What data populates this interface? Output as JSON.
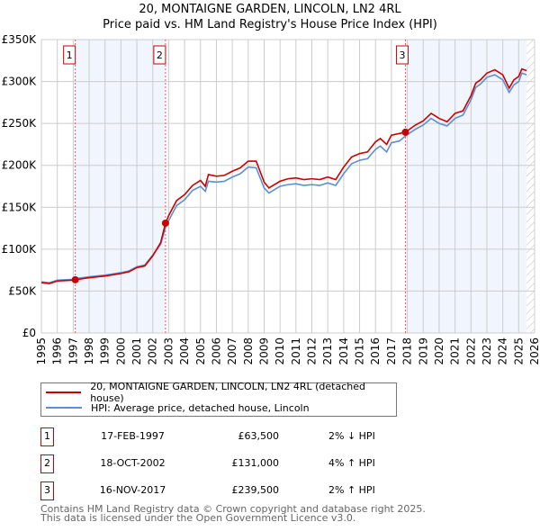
{
  "chart_data": {
    "type": "line",
    "title": "20, MONTAIGNE GARDEN, LINCOLN, LN2 4RL",
    "subtitle": "Price paid vs. HM Land Registry's House Price Index (HPI)",
    "xlim": [
      1995,
      2026
    ],
    "ylim": [
      0,
      350000
    ],
    "yticks": [
      {
        "v": 0,
        "label": "£0"
      },
      {
        "v": 50000,
        "label": "£50K"
      },
      {
        "v": 100000,
        "label": "£100K"
      },
      {
        "v": 150000,
        "label": "£150K"
      },
      {
        "v": 200000,
        "label": "£200K"
      },
      {
        "v": 250000,
        "label": "£250K"
      },
      {
        "v": 300000,
        "label": "£300K"
      },
      {
        "v": 350000,
        "label": "£350K"
      }
    ],
    "xticks": [
      "1995",
      "1996",
      "1997",
      "1998",
      "1999",
      "2000",
      "2001",
      "2002",
      "2003",
      "2004",
      "2005",
      "2006",
      "2007",
      "2008",
      "2009",
      "2010",
      "2011",
      "2012",
      "2013",
      "2014",
      "2015",
      "2016",
      "2017",
      "2018",
      "2019",
      "2020",
      "2021",
      "2022",
      "2023",
      "2024",
      "2025",
      "2026"
    ],
    "grid": true,
    "shaded_ranges": [
      [
        1997.13,
        2002.8
      ],
      [
        2017.88,
        2025.5
      ]
    ],
    "series": [
      {
        "name": "20, MONTAIGNE GARDEN, LINCOLN, LN2 4RL (detached house)",
        "color": "#cc0000",
        "x": [
          1995,
          1995.5,
          1996,
          1997,
          1997.13,
          1998,
          1999,
          2000,
          2000.5,
          2001,
          2001.5,
          2002,
          2002.5,
          2002.8,
          2003,
          2003.5,
          2004,
          2004.5,
          2005,
          2005.3,
          2005.5,
          2006,
          2006.5,
          2007,
          2007.5,
          2008,
          2008.5,
          2009,
          2009.3,
          2010,
          2010.5,
          2011,
          2011.5,
          2012,
          2012.5,
          2013,
          2013.5,
          2014,
          2014.5,
          2015,
          2015.5,
          2016,
          2016.3,
          2016.7,
          2017,
          2017.5,
          2017.88,
          2018.5,
          2019,
          2019.5,
          2020,
          2020.5,
          2021,
          2021.5,
          2022,
          2022.3,
          2022.6,
          2023,
          2023.5,
          2024,
          2024.4,
          2024.7,
          2025,
          2025.2,
          2025.5
        ],
        "y": [
          60000,
          59000,
          62000,
          63000,
          63500,
          66000,
          68000,
          71000,
          73000,
          78000,
          80000,
          92000,
          108000,
          131000,
          140000,
          158000,
          165000,
          176000,
          182000,
          175000,
          189000,
          187000,
          188000,
          193000,
          197000,
          205000,
          205000,
          180000,
          173000,
          181000,
          184000,
          185000,
          183000,
          184000,
          183000,
          186000,
          183000,
          198000,
          210000,
          214000,
          216000,
          228000,
          232000,
          225000,
          236000,
          238000,
          239500,
          248000,
          253000,
          262000,
          256000,
          252000,
          262000,
          265000,
          283000,
          298000,
          302000,
          310000,
          314000,
          308000,
          292000,
          302000,
          306000,
          315000,
          313000
        ]
      },
      {
        "name": "HPI: Average price, detached house, Lincoln",
        "color": "#5b8fd4",
        "x": [
          1995,
          1995.5,
          1996,
          1997,
          1997.13,
          1998,
          1999,
          2000,
          2000.5,
          2001,
          2001.5,
          2002,
          2002.5,
          2002.8,
          2003,
          2003.5,
          2004,
          2004.5,
          2005,
          2005.3,
          2005.5,
          2006,
          2006.5,
          2007,
          2007.5,
          2008,
          2008.5,
          2009,
          2009.3,
          2010,
          2010.5,
          2011,
          2011.5,
          2012,
          2012.5,
          2013,
          2013.5,
          2014,
          2014.5,
          2015,
          2015.5,
          2016,
          2016.3,
          2016.7,
          2017,
          2017.5,
          2017.88,
          2018.5,
          2019,
          2019.5,
          2020,
          2020.5,
          2021,
          2021.5,
          2022,
          2022.3,
          2022.6,
          2023,
          2023.5,
          2024,
          2024.4,
          2024.7,
          2025,
          2025.2,
          2025.5
        ],
        "y": [
          61000,
          60000,
          63000,
          64000,
          64800,
          67000,
          69000,
          72000,
          74000,
          79000,
          81000,
          93000,
          106000,
          126000,
          134000,
          152000,
          159000,
          170000,
          175000,
          169000,
          181000,
          180000,
          181000,
          186000,
          190000,
          198000,
          197000,
          173000,
          167000,
          175000,
          177000,
          178000,
          176000,
          177000,
          176000,
          179000,
          176000,
          190000,
          202000,
          206000,
          208000,
          219000,
          223000,
          216000,
          227000,
          229000,
          235000,
          243000,
          248000,
          256000,
          250000,
          247000,
          256000,
          260000,
          278000,
          293000,
          297000,
          305000,
          308000,
          302000,
          287000,
          296000,
          300000,
          310000,
          308000
        ]
      }
    ],
    "annotations": [
      {
        "label": "1",
        "x": 1997.13,
        "y": 63500
      },
      {
        "label": "2",
        "x": 2002.8,
        "y": 131000
      },
      {
        "label": "3",
        "x": 2017.88,
        "y": 239500
      }
    ]
  },
  "legend": [
    {
      "label": "20, MONTAIGNE GARDEN, LINCOLN, LN2 4RL (detached house)",
      "color": "#cc0000"
    },
    {
      "label": "HPI: Average price, detached house, Lincoln",
      "color": "#5b8fd4"
    }
  ],
  "transactions": [
    {
      "num": "1",
      "date": "17-FEB-1997",
      "price": "£63,500",
      "hpi": "2% ↓ HPI"
    },
    {
      "num": "2",
      "date": "18-OCT-2002",
      "price": "£131,000",
      "hpi": "4% ↑ HPI"
    },
    {
      "num": "3",
      "date": "16-NOV-2017",
      "price": "£239,500",
      "hpi": "2% ↑ HPI"
    }
  ],
  "footer": [
    "Contains HM Land Registry data © Crown copyright and database right 2025.",
    "This data is licensed under the Open Government Licence v3.0."
  ]
}
